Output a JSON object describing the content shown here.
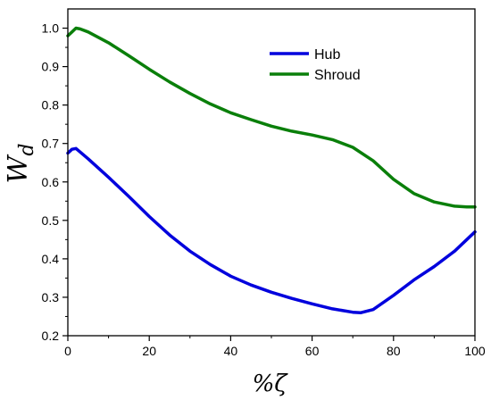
{
  "chart_data": {
    "type": "line",
    "xlabel": "%ζ",
    "ylabel": "W_d",
    "xlim": [
      0,
      100
    ],
    "ylim": [
      0.2,
      1.05
    ],
    "x_ticks": [
      0,
      20,
      40,
      60,
      80,
      100
    ],
    "y_ticks": [
      0.2,
      0.3,
      0.4,
      0.5,
      0.6,
      0.7,
      0.8,
      0.9,
      1.0
    ],
    "x_tick_labels": [
      "0",
      "20",
      "40",
      "60",
      "80",
      "100"
    ],
    "y_tick_labels": [
      "0.2",
      "0.3",
      "0.4",
      "0.5",
      "0.6",
      "0.7",
      "0.8",
      "0.9",
      "1.0"
    ],
    "grid": false,
    "legend_position": "top-right",
    "series": [
      {
        "name": "Hub",
        "color": "#0000dd",
        "x": [
          0,
          1,
          2,
          3,
          5,
          10,
          15,
          20,
          25,
          30,
          35,
          40,
          45,
          50,
          55,
          60,
          65,
          70,
          72,
          75,
          80,
          85,
          90,
          95,
          100
        ],
        "y": [
          0.675,
          0.685,
          0.687,
          0.678,
          0.66,
          0.612,
          0.562,
          0.51,
          0.462,
          0.42,
          0.385,
          0.355,
          0.332,
          0.313,
          0.297,
          0.283,
          0.27,
          0.261,
          0.26,
          0.268,
          0.305,
          0.345,
          0.38,
          0.42,
          0.47
        ]
      },
      {
        "name": "Shroud",
        "color": "#0a7f0a",
        "x": [
          0,
          1,
          2,
          3,
          5,
          10,
          15,
          20,
          25,
          30,
          35,
          40,
          45,
          50,
          55,
          60,
          65,
          70,
          75,
          80,
          85,
          90,
          95,
          98,
          100
        ],
        "y": [
          0.98,
          0.99,
          1.0,
          0.998,
          0.99,
          0.962,
          0.928,
          0.893,
          0.86,
          0.83,
          0.803,
          0.78,
          0.762,
          0.745,
          0.732,
          0.722,
          0.71,
          0.69,
          0.655,
          0.607,
          0.57,
          0.548,
          0.537,
          0.535,
          0.535
        ]
      }
    ]
  }
}
